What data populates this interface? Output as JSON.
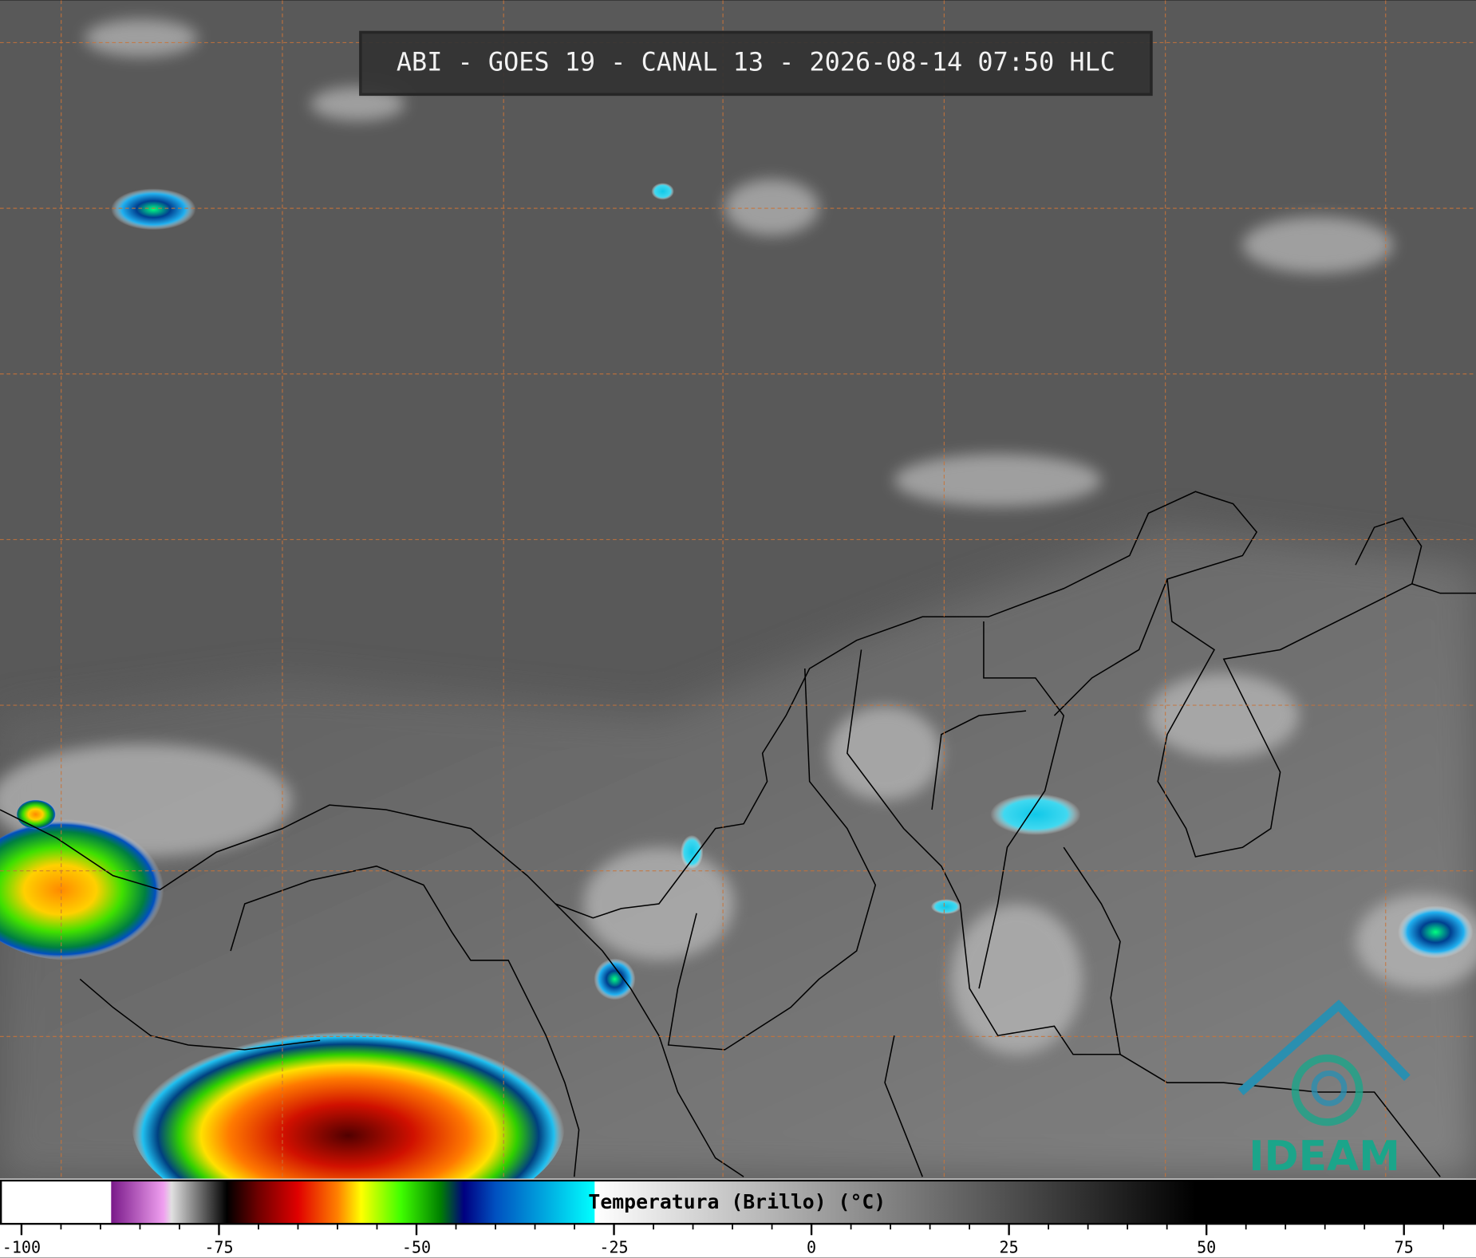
{
  "header": {
    "title": "ABI - GOES 19 - CANAL 13 - 2026-08-14 07:50 HLC"
  },
  "colorbar": {
    "label": "Temperatura (Brillo) (°C)",
    "lim": [
      -102.6,
      84
    ],
    "ticks": [
      -100,
      -75,
      -50,
      -25,
      0,
      25,
      50,
      75
    ],
    "stops": [
      {
        "value": -102.6,
        "color": "#ffffff"
      },
      {
        "value": -88.7,
        "color": "#ffffff"
      },
      {
        "value": -88.6,
        "color": "#7a1a8a"
      },
      {
        "value": -82,
        "color": "#f0a0f0"
      },
      {
        "value": -81,
        "color": "#e0e0e0"
      },
      {
        "value": -75,
        "color": "#202020"
      },
      {
        "value": -74,
        "color": "#000000"
      },
      {
        "value": -70,
        "color": "#700000"
      },
      {
        "value": -65,
        "color": "#e00000"
      },
      {
        "value": -60,
        "color": "#ff8000"
      },
      {
        "value": -57,
        "color": "#ffff00"
      },
      {
        "value": -52,
        "color": "#40ff00"
      },
      {
        "value": -47,
        "color": "#008000"
      },
      {
        "value": -44,
        "color": "#000080"
      },
      {
        "value": -40,
        "color": "#0050c0"
      },
      {
        "value": -27.5,
        "color": "#00ffff"
      },
      {
        "value": -27.4,
        "color": "#ffffff"
      },
      {
        "value": 48.6,
        "color": "#000000"
      },
      {
        "value": 84,
        "color": "#000000"
      }
    ]
  },
  "logo": {
    "text": "IDEAM"
  }
}
